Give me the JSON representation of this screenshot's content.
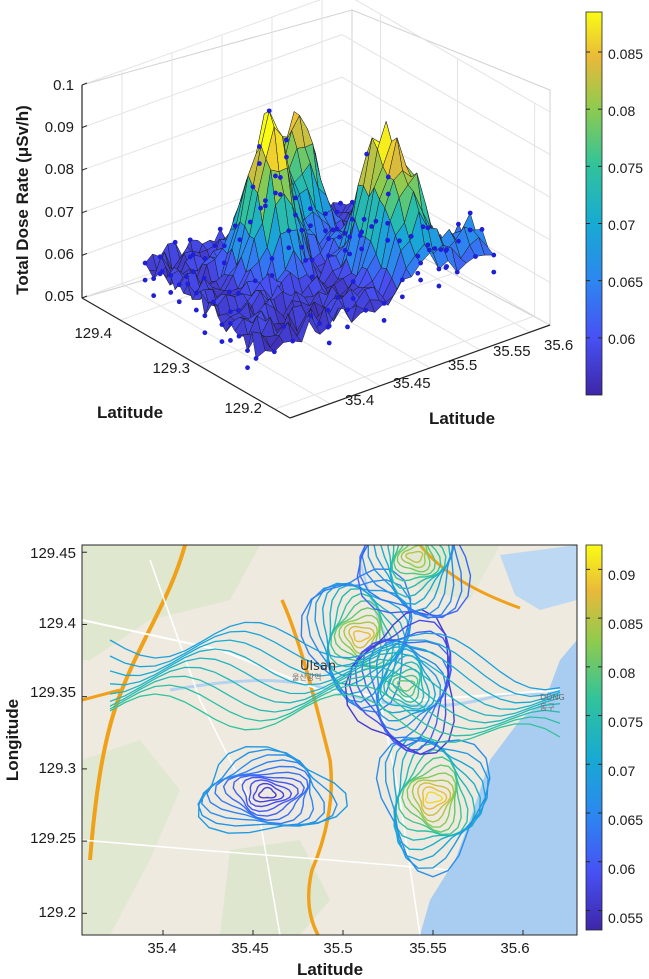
{
  "chart_data": [
    {
      "type": "surface3d",
      "zlabel": "Total Dose Rate (μSv/h)",
      "xlabel": "Latitude",
      "ylabel": "Latitude",
      "xlim": [
        129.18,
        129.45
      ],
      "ylim": [
        35.36,
        35.62
      ],
      "zlim": [
        0.05,
        0.1
      ],
      "z_ticks": [
        "0.05",
        "0.06",
        "0.07",
        "0.08",
        "0.09",
        "0.1"
      ],
      "x_ticks": [
        {
          "label": "129.4",
          "value": 129.4
        },
        {
          "label": "129.3",
          "value": 129.3
        },
        {
          "label": "129.2",
          "value": 129.2
        }
      ],
      "y_ticks": [
        {
          "label": "35.4",
          "value": 35.4
        },
        {
          "label": "35.45",
          "value": 35.45
        },
        {
          "label": "35.5",
          "value": 35.5
        },
        {
          "label": "35.55",
          "value": 35.55
        },
        {
          "label": "35.6",
          "value": 35.6
        }
      ],
      "colorbar": {
        "ticks": [
          "0.06",
          "0.065",
          "0.07",
          "0.075",
          "0.08",
          "0.085"
        ],
        "min": 0.055,
        "max": 0.0885
      },
      "grid": true,
      "colormap": "parula",
      "marker_color": "#1f1fd6",
      "peaks": [
        {
          "x": 129.35,
          "y": 35.47,
          "z": 0.094
        },
        {
          "x": 129.38,
          "y": 35.52,
          "z": 0.086
        },
        {
          "x": 129.3,
          "y": 35.54,
          "z": 0.085
        },
        {
          "x": 129.27,
          "y": 35.55,
          "z": 0.078
        },
        {
          "x": 129.26,
          "y": 35.6,
          "z": 0.067
        }
      ]
    },
    {
      "type": "contour",
      "xlabel": "Latitude",
      "ylabel": "Longitude",
      "xlim": [
        35.355,
        35.63
      ],
      "ylim": [
        129.185,
        129.455
      ],
      "x_ticks": [
        "35.4",
        "35.45",
        "35.5",
        "35.55",
        "35.6"
      ],
      "y_ticks": [
        "129.2",
        "129.25",
        "129.3",
        "129.35",
        "129.4",
        "129.45"
      ],
      "colorbar": {
        "ticks": [
          "0.055",
          "0.06",
          "0.065",
          "0.07",
          "0.075",
          "0.08",
          "0.085",
          "0.09"
        ],
        "min": 0.053,
        "max": 0.0925
      },
      "colormap": "parula",
      "map_labels": [
        "Ulsan",
        "울산광역",
        "DONG",
        "동구"
      ],
      "features": [
        {
          "kind": "min",
          "x": 35.458,
          "y": 129.283,
          "z": 0.056
        },
        {
          "kind": "max",
          "x": 35.55,
          "y": 129.28,
          "z": 0.09
        },
        {
          "kind": "max",
          "x": 35.51,
          "y": 129.392,
          "z": 0.088
        },
        {
          "kind": "max",
          "x": 35.535,
          "y": 129.358,
          "z": 0.08
        },
        {
          "kind": "max",
          "x": 35.54,
          "y": 129.447,
          "z": 0.085
        }
      ]
    }
  ]
}
